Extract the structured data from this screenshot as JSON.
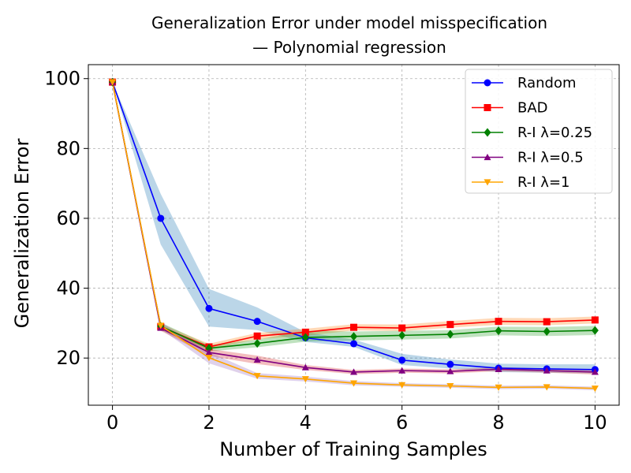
{
  "chart_data": {
    "type": "line",
    "title": [
      "Generalization Error under model misspecification",
      "— Polynomial regression"
    ],
    "xlabel": "Number of Training Samples",
    "ylabel": "Generalization Error",
    "xlim": [
      -0.5,
      10.5
    ],
    "ylim": [
      6.5,
      104
    ],
    "x_ticks": [
      0,
      2,
      4,
      6,
      8,
      10
    ],
    "y_ticks": [
      20,
      40,
      60,
      80,
      100
    ],
    "grid": true,
    "legend_position": "top-right",
    "x": [
      0,
      1,
      2,
      3,
      4,
      5,
      6,
      7,
      8,
      9,
      10
    ],
    "series": [
      {
        "name": "Random",
        "color": "#0000ff",
        "band_color": "#1f77b4",
        "marker": "circle",
        "values": [
          99,
          60,
          34.2,
          30.5,
          25.8,
          24.1,
          19.4,
          18.2,
          17.1,
          16.9,
          16.7
        ],
        "lower": [
          99,
          52.5,
          29.0,
          28.0,
          24.6,
          23.2,
          18.0,
          17.0,
          16.0,
          15.8,
          15.6
        ],
        "upper": [
          99,
          67.0,
          39.8,
          34.5,
          27.4,
          25.3,
          21.2,
          19.6,
          18.4,
          18.2,
          18.2
        ]
      },
      {
        "name": "BAD",
        "color": "#ff0000",
        "band_color": "#ff7f0e",
        "marker": "square",
        "values": [
          99,
          29.0,
          23.2,
          26.3,
          27.4,
          28.8,
          28.6,
          29.6,
          30.5,
          30.4,
          30.9
        ],
        "lower": [
          99,
          28.2,
          22.4,
          25.4,
          26.4,
          27.9,
          27.7,
          28.7,
          29.5,
          29.4,
          29.9
        ],
        "upper": [
          99,
          29.8,
          24.1,
          27.2,
          28.4,
          29.7,
          29.6,
          30.6,
          31.5,
          31.4,
          31.9
        ]
      },
      {
        "name": "R-I λ=0.25",
        "color": "#008000",
        "band_color": "#2ca02c",
        "marker": "diamond",
        "values": [
          99,
          29.1,
          22.8,
          24.2,
          25.9,
          26.2,
          26.5,
          26.8,
          27.8,
          27.6,
          27.9
        ],
        "lower": [
          99,
          28.0,
          21.9,
          23.1,
          24.7,
          25.0,
          25.3,
          25.6,
          26.5,
          26.3,
          26.6
        ],
        "upper": [
          99,
          30.2,
          23.7,
          25.3,
          27.8,
          27.6,
          27.8,
          28.0,
          29.0,
          28.9,
          29.2
        ]
      },
      {
        "name": "R-I λ=0.5",
        "color": "#800080",
        "band_color": "#d62728",
        "marker": "triangle-up",
        "values": [
          99,
          28.6,
          21.6,
          19.5,
          17.3,
          16.0,
          16.4,
          16.2,
          16.8,
          16.4,
          16.0
        ],
        "lower": [
          99,
          27.8,
          20.6,
          18.3,
          16.6,
          15.4,
          15.8,
          15.6,
          16.2,
          15.8,
          15.3
        ],
        "upper": [
          99,
          29.4,
          22.6,
          20.7,
          18.0,
          16.6,
          17.0,
          16.8,
          17.4,
          17.0,
          16.7
        ]
      },
      {
        "name": "R-I λ=1",
        "color": "#ffa500",
        "band_color": "#9467bd",
        "marker": "triangle-down",
        "values": [
          99,
          29.3,
          20.1,
          14.9,
          14.0,
          12.8,
          12.3,
          12.0,
          11.6,
          11.7,
          11.3
        ],
        "lower": [
          99,
          28.3,
          18.5,
          14.1,
          13.3,
          12.2,
          11.8,
          11.5,
          11.1,
          11.2,
          10.8
        ],
        "upper": [
          99,
          30.3,
          21.7,
          15.7,
          14.7,
          13.4,
          12.8,
          12.5,
          12.1,
          12.2,
          11.8
        ]
      }
    ]
  }
}
